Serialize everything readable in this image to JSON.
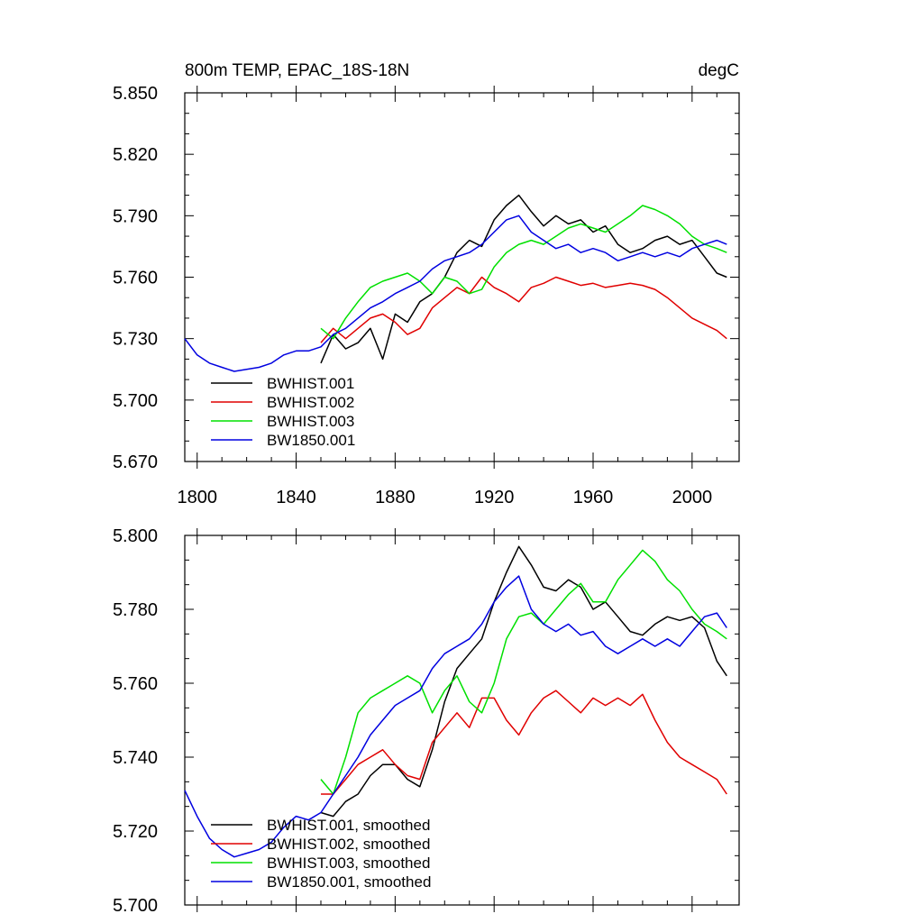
{
  "colors": {
    "BWHIST.001": "#000000",
    "BWHIST.002": "#e00000",
    "BWHIST.003": "#00e000",
    "BW1850.001": "#0000e0"
  },
  "chart_data": [
    {
      "type": "line",
      "title": "800m TEMP, EPAC_18S-18N",
      "units": "degC",
      "xlabel": "",
      "ylabel": "",
      "xlim": [
        1795,
        2019
      ],
      "ylim": [
        5.67,
        5.85
      ],
      "xticks": [
        1800,
        1840,
        1880,
        1920,
        1960,
        2000
      ],
      "xtick_labels": [
        "1800",
        "1840",
        "1880",
        "1920",
        "1960",
        "2000"
      ],
      "yticks": [
        5.67,
        5.7,
        5.73,
        5.76,
        5.79,
        5.82,
        5.85
      ],
      "ytick_labels": [
        "5.670",
        "5.700",
        "5.730",
        "5.760",
        "5.790",
        "5.820",
        "5.850"
      ],
      "legend_position": "bottom-left",
      "series": [
        {
          "name": "BWHIST.001",
          "x": [
            1850,
            1855,
            1860,
            1865,
            1870,
            1875,
            1880,
            1885,
            1890,
            1895,
            1900,
            1905,
            1910,
            1915,
            1920,
            1925,
            1930,
            1935,
            1940,
            1945,
            1950,
            1955,
            1960,
            1965,
            1970,
            1975,
            1980,
            1985,
            1990,
            1995,
            2000,
            2005,
            2010,
            2014
          ],
          "y": [
            5.718,
            5.732,
            5.725,
            5.728,
            5.735,
            5.72,
            5.742,
            5.738,
            5.748,
            5.752,
            5.76,
            5.772,
            5.778,
            5.775,
            5.788,
            5.795,
            5.8,
            5.792,
            5.785,
            5.79,
            5.786,
            5.788,
            5.782,
            5.785,
            5.776,
            5.772,
            5.774,
            5.778,
            5.78,
            5.776,
            5.778,
            5.77,
            5.762,
            5.76
          ]
        },
        {
          "name": "BWHIST.002",
          "x": [
            1850,
            1855,
            1860,
            1865,
            1870,
            1875,
            1880,
            1885,
            1890,
            1895,
            1900,
            1905,
            1910,
            1915,
            1920,
            1925,
            1930,
            1935,
            1940,
            1945,
            1950,
            1955,
            1960,
            1965,
            1970,
            1975,
            1980,
            1985,
            1990,
            1995,
            2000,
            2005,
            2010,
            2014
          ],
          "y": [
            5.728,
            5.735,
            5.73,
            5.735,
            5.74,
            5.742,
            5.738,
            5.732,
            5.735,
            5.745,
            5.75,
            5.755,
            5.752,
            5.76,
            5.755,
            5.752,
            5.748,
            5.755,
            5.757,
            5.76,
            5.758,
            5.756,
            5.757,
            5.755,
            5.756,
            5.757,
            5.756,
            5.754,
            5.75,
            5.745,
            5.74,
            5.737,
            5.734,
            5.73
          ]
        },
        {
          "name": "BWHIST.003",
          "x": [
            1850,
            1855,
            1860,
            1865,
            1870,
            1875,
            1880,
            1885,
            1890,
            1895,
            1900,
            1905,
            1910,
            1915,
            1920,
            1925,
            1930,
            1935,
            1940,
            1945,
            1950,
            1955,
            1960,
            1965,
            1970,
            1975,
            1980,
            1985,
            1990,
            1995,
            2000,
            2005,
            2010,
            2014
          ],
          "y": [
            5.735,
            5.73,
            5.74,
            5.748,
            5.755,
            5.758,
            5.76,
            5.762,
            5.758,
            5.752,
            5.76,
            5.758,
            5.752,
            5.754,
            5.765,
            5.772,
            5.776,
            5.778,
            5.776,
            5.78,
            5.784,
            5.786,
            5.784,
            5.782,
            5.786,
            5.79,
            5.795,
            5.793,
            5.79,
            5.786,
            5.78,
            5.776,
            5.774,
            5.772
          ]
        },
        {
          "name": "BW1850.001",
          "x": [
            1795,
            1800,
            1805,
            1810,
            1815,
            1820,
            1825,
            1830,
            1835,
            1840,
            1845,
            1850,
            1855,
            1860,
            1865,
            1870,
            1875,
            1880,
            1885,
            1890,
            1895,
            1900,
            1905,
            1910,
            1915,
            1920,
            1925,
            1930,
            1935,
            1940,
            1945,
            1950,
            1955,
            1960,
            1965,
            1970,
            1975,
            1980,
            1985,
            1990,
            1995,
            2000,
            2005,
            2010,
            2014
          ],
          "y": [
            5.73,
            5.722,
            5.718,
            5.716,
            5.714,
            5.715,
            5.716,
            5.718,
            5.722,
            5.724,
            5.724,
            5.726,
            5.732,
            5.735,
            5.74,
            5.745,
            5.748,
            5.752,
            5.755,
            5.758,
            5.764,
            5.768,
            5.77,
            5.772,
            5.776,
            5.782,
            5.788,
            5.79,
            5.782,
            5.778,
            5.774,
            5.776,
            5.772,
            5.774,
            5.772,
            5.768,
            5.77,
            5.772,
            5.77,
            5.772,
            5.77,
            5.774,
            5.776,
            5.778,
            5.776
          ]
        }
      ]
    },
    {
      "type": "line",
      "title": "",
      "xlabel": "",
      "ylabel": "",
      "xlim": [
        1795,
        2019
      ],
      "ylim": [
        5.7,
        5.8
      ],
      "xticks": [
        1800,
        1840,
        1880,
        1920,
        1960,
        2000
      ],
      "yticks": [
        5.7,
        5.72,
        5.74,
        5.76,
        5.78,
        5.8
      ],
      "ytick_labels": [
        "5.700",
        "5.720",
        "5.740",
        "5.760",
        "5.780",
        "5.800"
      ],
      "legend_position": "bottom-left",
      "series": [
        {
          "name": "BWHIST.001, smoothed",
          "x": [
            1850,
            1855,
            1860,
            1865,
            1870,
            1875,
            1880,
            1885,
            1890,
            1895,
            1900,
            1905,
            1910,
            1915,
            1920,
            1925,
            1930,
            1935,
            1940,
            1945,
            1950,
            1955,
            1960,
            1965,
            1970,
            1975,
            1980,
            1985,
            1990,
            1995,
            2000,
            2005,
            2010,
            2014
          ],
          "y": [
            5.725,
            5.724,
            5.728,
            5.73,
            5.735,
            5.738,
            5.738,
            5.734,
            5.732,
            5.742,
            5.755,
            5.764,
            5.768,
            5.772,
            5.782,
            5.79,
            5.797,
            5.792,
            5.786,
            5.785,
            5.788,
            5.786,
            5.78,
            5.782,
            5.778,
            5.774,
            5.773,
            5.776,
            5.778,
            5.777,
            5.778,
            5.775,
            5.766,
            5.762
          ]
        },
        {
          "name": "BWHIST.002, smoothed",
          "x": [
            1850,
            1855,
            1860,
            1865,
            1870,
            1875,
            1880,
            1885,
            1890,
            1895,
            1900,
            1905,
            1910,
            1915,
            1920,
            1925,
            1930,
            1935,
            1940,
            1945,
            1950,
            1955,
            1960,
            1965,
            1970,
            1975,
            1980,
            1985,
            1990,
            1995,
            2000,
            2005,
            2010,
            2014
          ],
          "y": [
            5.73,
            5.73,
            5.734,
            5.738,
            5.74,
            5.742,
            5.738,
            5.735,
            5.734,
            5.744,
            5.748,
            5.752,
            5.748,
            5.756,
            5.756,
            5.75,
            5.746,
            5.752,
            5.756,
            5.758,
            5.755,
            5.752,
            5.756,
            5.754,
            5.756,
            5.754,
            5.757,
            5.75,
            5.744,
            5.74,
            5.738,
            5.736,
            5.734,
            5.73
          ]
        },
        {
          "name": "BWHIST.003, smoothed",
          "x": [
            1850,
            1855,
            1860,
            1865,
            1870,
            1875,
            1880,
            1885,
            1890,
            1895,
            1900,
            1905,
            1910,
            1915,
            1920,
            1925,
            1930,
            1935,
            1940,
            1945,
            1950,
            1955,
            1960,
            1965,
            1970,
            1975,
            1980,
            1985,
            1990,
            1995,
            2000,
            2005,
            2010,
            2014
          ],
          "y": [
            5.734,
            5.73,
            5.74,
            5.752,
            5.756,
            5.758,
            5.76,
            5.762,
            5.76,
            5.752,
            5.758,
            5.762,
            5.755,
            5.752,
            5.76,
            5.772,
            5.778,
            5.779,
            5.776,
            5.78,
            5.784,
            5.787,
            5.782,
            5.782,
            5.788,
            5.792,
            5.796,
            5.793,
            5.788,
            5.785,
            5.78,
            5.776,
            5.774,
            5.772
          ]
        },
        {
          "name": "BW1850.001, smoothed",
          "x": [
            1795,
            1800,
            1805,
            1810,
            1815,
            1820,
            1825,
            1830,
            1835,
            1840,
            1845,
            1850,
            1855,
            1860,
            1865,
            1870,
            1875,
            1880,
            1885,
            1890,
            1895,
            1900,
            1905,
            1910,
            1915,
            1920,
            1925,
            1930,
            1935,
            1940,
            1945,
            1950,
            1955,
            1960,
            1965,
            1970,
            1975,
            1980,
            1985,
            1990,
            1995,
            2000,
            2005,
            2010,
            2014
          ],
          "y": [
            5.731,
            5.724,
            5.718,
            5.715,
            5.713,
            5.714,
            5.715,
            5.717,
            5.721,
            5.724,
            5.723,
            5.725,
            5.73,
            5.735,
            5.74,
            5.746,
            5.75,
            5.754,
            5.756,
            5.758,
            5.764,
            5.768,
            5.77,
            5.772,
            5.776,
            5.782,
            5.786,
            5.789,
            5.78,
            5.776,
            5.774,
            5.776,
            5.773,
            5.774,
            5.77,
            5.768,
            5.77,
            5.772,
            5.77,
            5.772,
            5.77,
            5.774,
            5.778,
            5.779,
            5.775
          ]
        }
      ]
    }
  ]
}
